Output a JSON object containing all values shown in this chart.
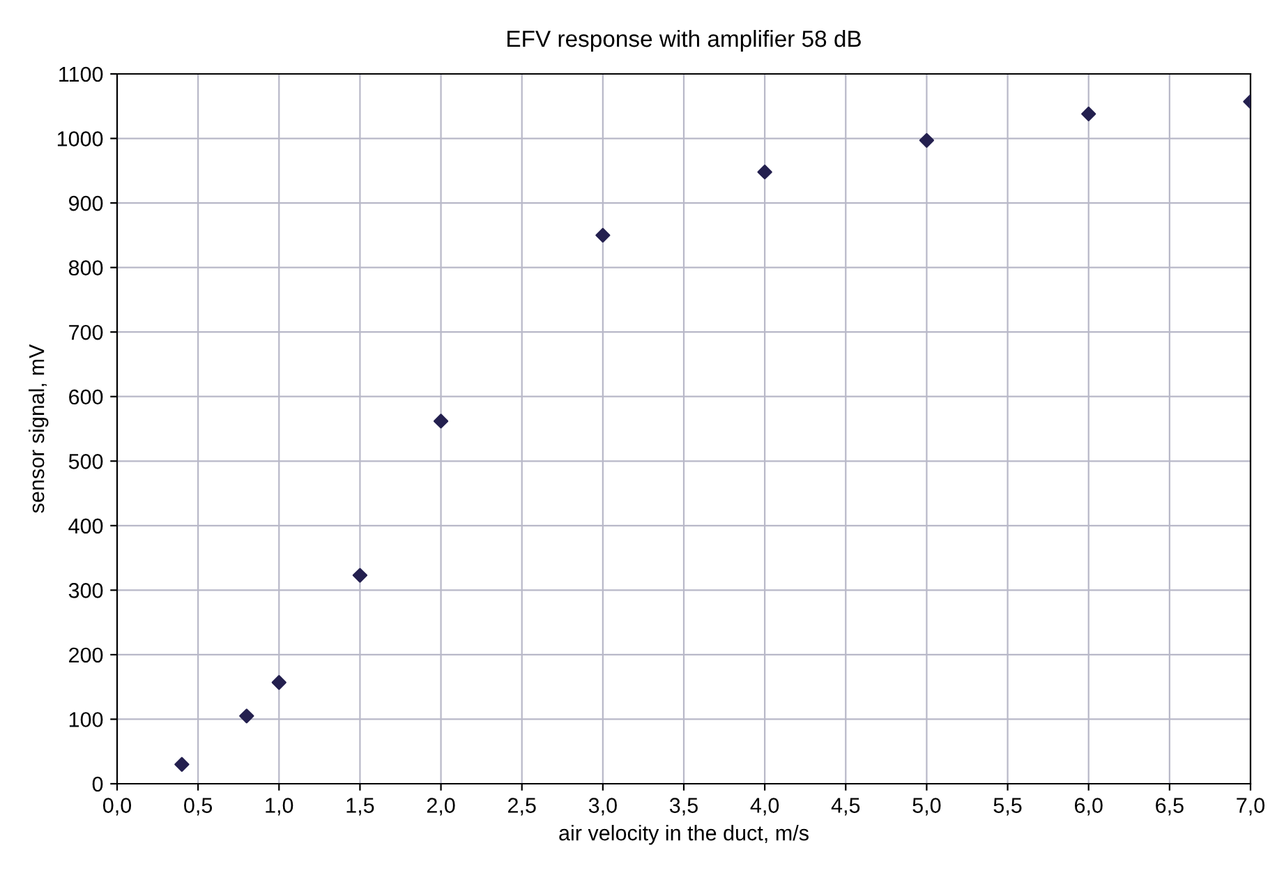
{
  "chart_data": {
    "type": "scatter",
    "title": "EFV response with amplifier 58 dB",
    "xlabel": "air velocity in the duct, m/s",
    "ylabel": "sensor signal, mV",
    "x": [
      0.4,
      0.8,
      1.0,
      1.5,
      2.0,
      3.0,
      4.0,
      5.0,
      6.0,
      7.0
    ],
    "series": [
      {
        "color": "#24204f",
        "values": [
          30,
          105,
          157,
          323,
          562,
          850,
          948,
          997,
          1038,
          1057
        ]
      }
    ],
    "marker": "diamond",
    "grid": true,
    "legend": false,
    "xlim": [
      0,
      7
    ],
    "ylim": [
      0,
      1100
    ],
    "xticks": [
      {
        "value": 0,
        "label": "0,0"
      },
      {
        "value": 0.5,
        "label": "0,5"
      },
      {
        "value": 1,
        "label": "1,0"
      },
      {
        "value": 1.5,
        "label": "1,5"
      },
      {
        "value": 2,
        "label": "2,0"
      },
      {
        "value": 2.5,
        "label": "2,5"
      },
      {
        "value": 3,
        "label": "3,0"
      },
      {
        "value": 3.5,
        "label": "3,5"
      },
      {
        "value": 4,
        "label": "4,0"
      },
      {
        "value": 4.5,
        "label": "4,5"
      },
      {
        "value": 5,
        "label": "5,0"
      },
      {
        "value": 5.5,
        "label": "5,5"
      },
      {
        "value": 6,
        "label": "6,0"
      },
      {
        "value": 6.5,
        "label": "6,5"
      },
      {
        "value": 7,
        "label": "7,0"
      }
    ],
    "yticks": [
      0,
      100,
      200,
      300,
      400,
      500,
      600,
      700,
      800,
      900,
      1000,
      1100
    ]
  }
}
